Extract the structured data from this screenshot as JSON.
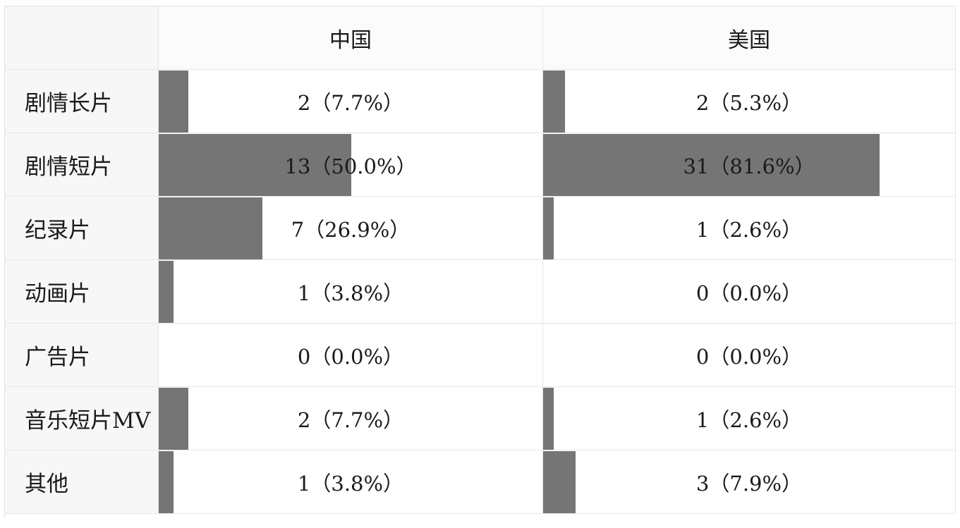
{
  "chart_data": {
    "type": "table",
    "columns": [
      "",
      "中国",
      "美国"
    ],
    "categories": [
      "剧情长片",
      "剧情短片",
      "纪录片",
      "动画片",
      "广告片",
      "音乐短片MV",
      "其他"
    ],
    "series": [
      {
        "name": "中国",
        "counts": [
          2,
          13,
          7,
          1,
          0,
          2,
          1
        ],
        "percents": [
          7.7,
          50.0,
          26.9,
          3.8,
          0.0,
          7.7,
          3.8
        ],
        "labels": [
          "2（7.7%）",
          "13（50.0%）",
          "7（26.9%）",
          "1（3.8%）",
          "0（0.0%）",
          "2（7.7%）",
          "1（3.8%）"
        ]
      },
      {
        "name": "美国",
        "counts": [
          2,
          31,
          1,
          0,
          0,
          1,
          3
        ],
        "percents": [
          5.3,
          81.6,
          2.6,
          0.0,
          0.0,
          2.6,
          7.9
        ],
        "labels": [
          "2（5.3%）",
          "31（81.6%）",
          "1（2.6%）",
          "0（0.0%）",
          "0（0.0%）",
          "1（2.6%）",
          "3（7.9%）"
        ]
      }
    ],
    "bar_color": "#757575"
  }
}
